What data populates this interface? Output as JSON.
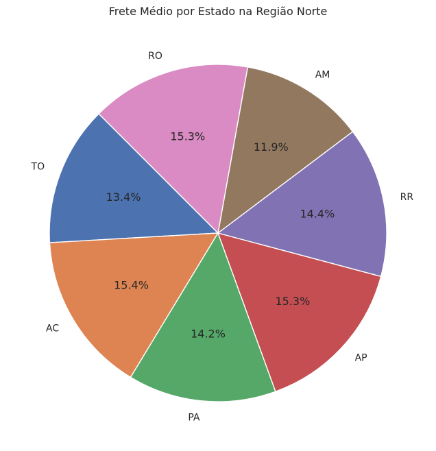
{
  "chart_data": {
    "type": "pie",
    "title": "Frete Médio por Estado na Região Norte",
    "start_angle_deg": 135,
    "direction": "counterclockwise",
    "slices": [
      {
        "label": "TO",
        "value": 13.4,
        "pct_label": "13.4%",
        "color": "#4c72b0"
      },
      {
        "label": "AC",
        "value": 15.4,
        "pct_label": "15.4%",
        "color": "#dd8452"
      },
      {
        "label": "PA",
        "value": 14.2,
        "pct_label": "14.2%",
        "color": "#55a868"
      },
      {
        "label": "AP",
        "value": 15.3,
        "pct_label": "15.3%",
        "color": "#c44e52"
      },
      {
        "label": "RR",
        "value": 14.4,
        "pct_label": "14.4%",
        "color": "#8172b3"
      },
      {
        "label": "AM",
        "value": 11.9,
        "pct_label": "11.9%",
        "color": "#937860"
      },
      {
        "label": "RO",
        "value": 15.3,
        "pct_label": "15.3%",
        "color": "#da8bc3"
      }
    ]
  }
}
